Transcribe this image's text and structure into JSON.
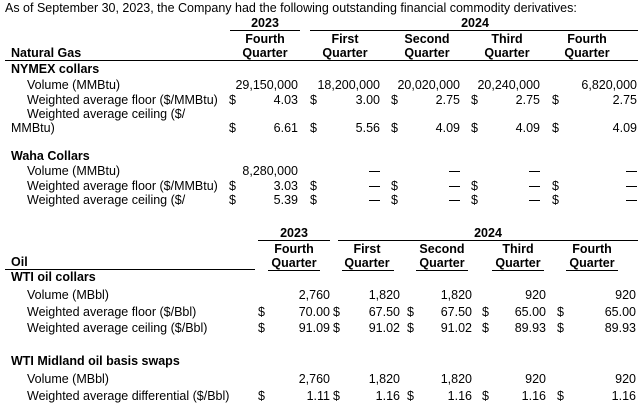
{
  "intro": "As of September 30, 2023, the Company had the following outstanding financial commodity derivatives:",
  "gas": {
    "section_label": "Natural Gas",
    "year_2023": "2023",
    "year_2024": "2024",
    "quarters": [
      {
        "line1": "Fourth",
        "line2": "Quarter"
      },
      {
        "line1": "First",
        "line2": "Quarter"
      },
      {
        "line1": "Second",
        "line2": "Quarter"
      },
      {
        "line1": "Third",
        "line2": "Quarter"
      },
      {
        "line1": "Fourth",
        "line2": "Quarter"
      }
    ],
    "nymex": {
      "title": "NYMEX collars",
      "volume_label": "Volume (MMBtu)",
      "volume": [
        "29,150,000",
        "18,200,000",
        "20,020,000",
        "20,240,000",
        "6,820,000"
      ],
      "floor_label": "Weighted average floor ($/MMBtu)",
      "floor": [
        "4.03",
        "3.00",
        "2.75",
        "2.75",
        "2.75"
      ],
      "ceiling_label_1": "Weighted average ceiling ($/",
      "ceiling_label_2": "MMBtu)",
      "ceiling": [
        "6.61",
        "5.56",
        "4.09",
        "4.09",
        "4.09"
      ]
    },
    "waha": {
      "title": "Waha Collars",
      "volume_label": "Volume (MMBtu)",
      "volume_q4_2023": "8,280,000",
      "floor_label": "Weighted average floor ($/MMBtu)",
      "floor_q4_2023": "3.03",
      "ceiling_label": "Weighted average ceiling ($/",
      "ceiling_q4_2023": "5.39"
    }
  },
  "oil": {
    "section_label": "Oil",
    "year_2023": "2023",
    "year_2024": "2024",
    "quarters": [
      {
        "line1": "Fourth",
        "line2": "Quarter"
      },
      {
        "line1": "First",
        "line2": "Quarter"
      },
      {
        "line1": "Second",
        "line2": "Quarter"
      },
      {
        "line1": "Third",
        "line2": "Quarter"
      },
      {
        "line1": "Fourth",
        "line2": "Quarter"
      }
    ],
    "wti": {
      "title": "WTI oil collars",
      "volume_label": "Volume (MBbl)",
      "volume": [
        "2,760",
        "1,820",
        "1,820",
        "920",
        "920"
      ],
      "floor_label": "Weighted average floor ($/Bbl)",
      "floor": [
        "70.00",
        "67.50",
        "67.50",
        "65.00",
        "65.00"
      ],
      "ceiling_label": "Weighted average ceiling ($/Bbl)",
      "ceiling": [
        "91.09",
        "91.02",
        "91.02",
        "89.93",
        "89.93"
      ]
    },
    "midland": {
      "title": "WTI Midland oil basis swaps",
      "volume_label": "Volume (MBbl)",
      "volume": [
        "2,760",
        "1,820",
        "1,820",
        "920",
        "920"
      ],
      "diff_label": "Weighted average differential ($/Bbl)",
      "diff": [
        "1.11",
        "1.16",
        "1.16",
        "1.16",
        "1.16"
      ]
    }
  },
  "currency_symbol": "$"
}
